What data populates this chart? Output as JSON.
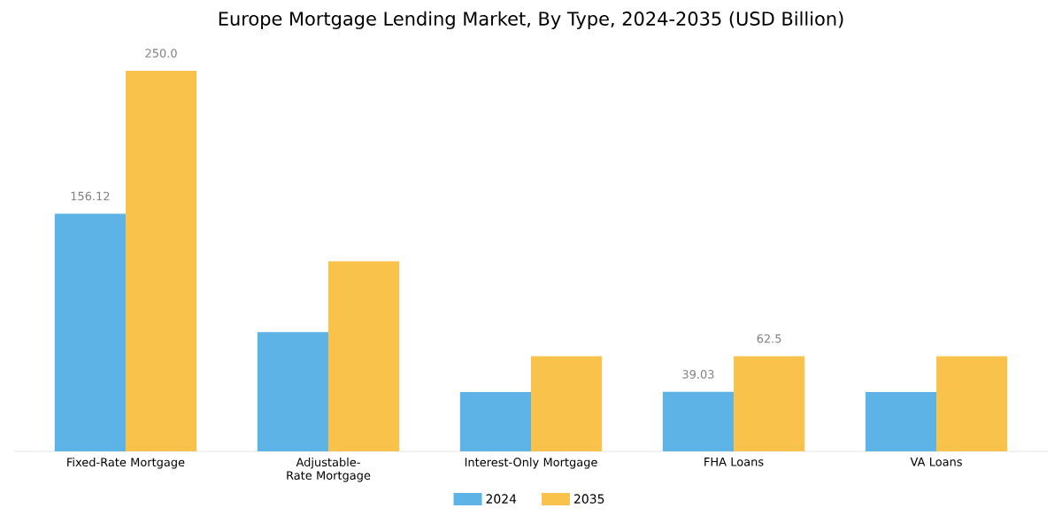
{
  "chart_data": {
    "type": "bar",
    "title": "Europe Mortgage Lending Market, By Type, 2024-2035 (USD Billion)",
    "categories": [
      "Fixed-Rate Mortgage",
      "Adjustable-Rate Mortgage",
      "Interest-Only Mortgage",
      "FHA Loans",
      "VA Loans"
    ],
    "series": [
      {
        "name": "2024",
        "color": "#5db3e6",
        "values": [
          156.12,
          78.3,
          39,
          39.03,
          39
        ],
        "value_labels": [
          "156.12",
          null,
          null,
          "39.03",
          null
        ]
      },
      {
        "name": "2035",
        "color": "#f9c34b",
        "values": [
          250.0,
          124.8,
          62.5,
          62.5,
          62.5
        ],
        "value_labels": [
          "250.0",
          null,
          null,
          "62.5",
          null
        ]
      }
    ],
    "legend": "bottom"
  }
}
